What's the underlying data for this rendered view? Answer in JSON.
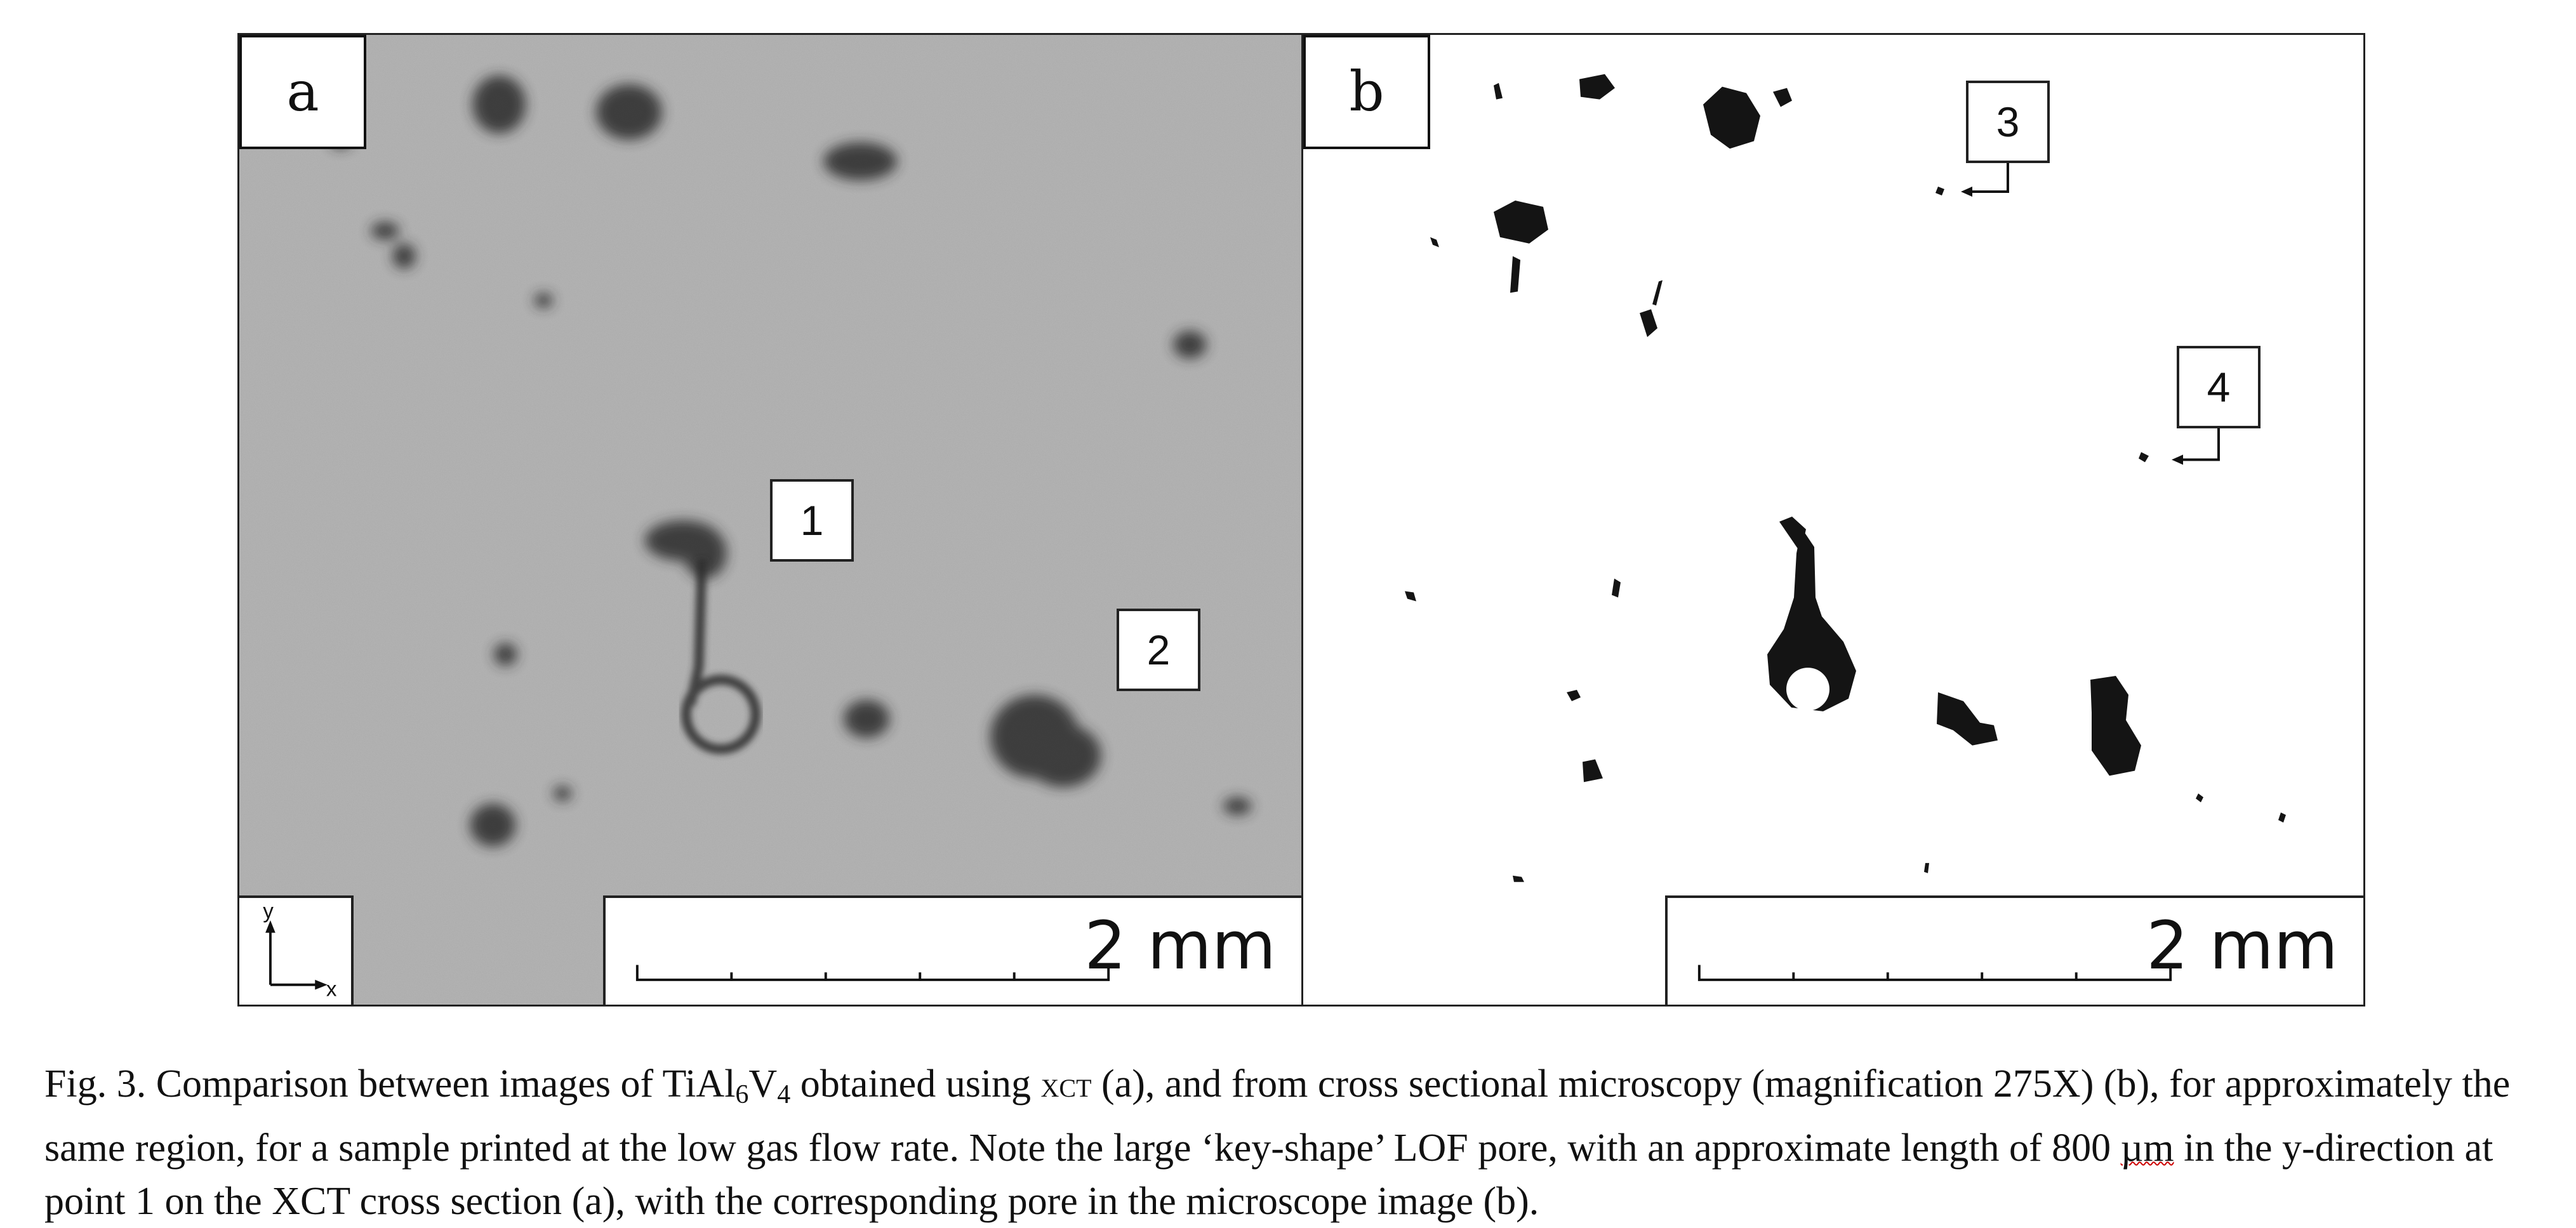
{
  "panels": [
    {
      "label": "a",
      "scale_bar": "2 mm",
      "axes": {
        "y": "y",
        "x": "x"
      },
      "callouts": [
        "1",
        "2"
      ]
    },
    {
      "label": "b",
      "scale_bar": "2 mm",
      "callouts": [
        "3",
        "4"
      ]
    }
  ],
  "caption": {
    "part1": "Fig. 3. Comparison between images of TiAl",
    "sub1": "6",
    "part2": "V",
    "sub2": "4",
    "part3": " obtained using ",
    "xct_small": "XCT",
    "part4": " (a), and from cross sectional microscopy (magnification 275X) (b), for approximately the same region, for a sample printed at the low gas flow rate. Note the large ‘key-shape’ LOF pore, with an approximate length of 800 ",
    "unit": "µm",
    "part5": " in the y-direction at point 1 on the XCT cross section (a), with the corresponding pore in the microscope image (b)."
  },
  "colors": {
    "xct_gray": "#a9a9a9",
    "pore_dark": "#1a1a1a",
    "frame": "#222222"
  }
}
